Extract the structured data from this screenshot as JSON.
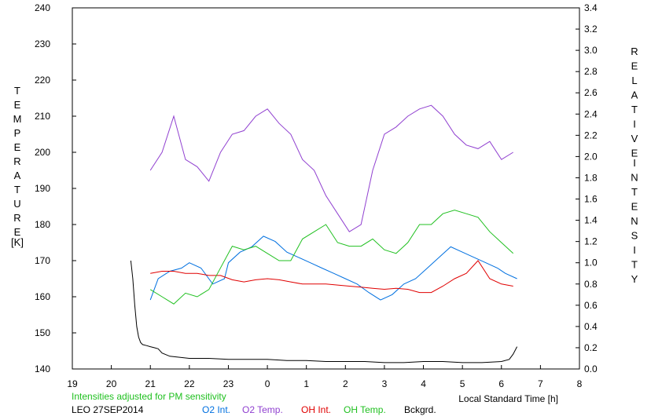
{
  "chart_data": {
    "type": "line",
    "xlabel": "Local Standard Time [h]",
    "ylabel_left": "TEMPERATURE",
    "ylabel_left_unit": "[K]",
    "ylabel_right": "RELATIVE INTENSITY",
    "x_ticks": [
      "19",
      "20",
      "21",
      "22",
      "23",
      "0",
      "1",
      "2",
      "3",
      "4",
      "5",
      "6",
      "7",
      "8"
    ],
    "x_range": [
      19,
      32
    ],
    "y_left_range": [
      140,
      240
    ],
    "y_left_ticks": [
      "140",
      "150",
      "160",
      "170",
      "180",
      "190",
      "200",
      "210",
      "220",
      "230",
      "240"
    ],
    "y_right_range": [
      0.0,
      3.4
    ],
    "y_right_ticks": [
      "0.0",
      "0.2",
      "0.4",
      "0.6",
      "0.8",
      "1.0",
      "1.2",
      "1.4",
      "1.6",
      "1.8",
      "2.0",
      "2.2",
      "2.4",
      "2.6",
      "2.8",
      "3.0",
      "3.2",
      "3.4"
    ],
    "note": "Intensities adjusted for PM sensitivity",
    "station": "LEO 27SEP2014",
    "grid": false,
    "legend_position": "bottom",
    "series": [
      {
        "name": "O2 Int.",
        "axis": "right",
        "color": "#0070e0",
        "x": [
          21.0,
          21.2,
          21.5,
          21.8,
          22.0,
          22.3,
          22.6,
          22.9,
          23.0,
          23.3,
          23.6,
          23.9,
          24.2,
          24.5,
          24.8,
          25.1,
          25.4,
          25.7,
          26.0,
          26.3,
          26.6,
          26.9,
          27.2,
          27.5,
          27.8,
          28.1,
          28.4,
          28.7,
          29.0,
          29.3,
          29.6,
          29.9,
          30.1,
          30.4
        ],
        "y": [
          0.65,
          0.85,
          0.92,
          0.95,
          1.0,
          0.95,
          0.8,
          0.85,
          1.0,
          1.1,
          1.15,
          1.25,
          1.2,
          1.1,
          1.05,
          1.0,
          0.95,
          0.9,
          0.85,
          0.8,
          0.72,
          0.65,
          0.7,
          0.8,
          0.85,
          0.95,
          1.05,
          1.15,
          1.1,
          1.05,
          1.0,
          0.95,
          0.9,
          0.85
        ]
      },
      {
        "name": "O2 Temp.",
        "axis": "left",
        "color": "#9040d0",
        "x": [
          21.0,
          21.3,
          21.6,
          21.9,
          22.2,
          22.5,
          22.8,
          23.1,
          23.4,
          23.7,
          24.0,
          24.3,
          24.6,
          24.9,
          25.2,
          25.5,
          25.8,
          26.1,
          26.4,
          26.7,
          27.0,
          27.3,
          27.6,
          27.9,
          28.2,
          28.5,
          28.8,
          29.1,
          29.4,
          29.7,
          30.0,
          30.3
        ],
        "y": [
          195,
          200,
          210,
          198,
          196,
          192,
          200,
          205,
          206,
          210,
          212,
          208,
          205,
          198,
          195,
          188,
          183,
          178,
          180,
          195,
          205,
          207,
          210,
          212,
          213,
          210,
          205,
          202,
          201,
          203,
          198,
          200
        ]
      },
      {
        "name": "OH Int.",
        "axis": "right",
        "color": "#e00000",
        "x": [
          21.0,
          21.3,
          21.6,
          21.9,
          22.2,
          22.5,
          22.8,
          23.1,
          23.4,
          23.7,
          24.0,
          24.3,
          24.6,
          24.9,
          25.2,
          25.5,
          25.8,
          26.1,
          26.4,
          26.7,
          27.0,
          27.3,
          27.6,
          27.9,
          28.2,
          28.5,
          28.8,
          29.1,
          29.4,
          29.7,
          30.0,
          30.3
        ],
        "y": [
          0.9,
          0.92,
          0.92,
          0.9,
          0.9,
          0.88,
          0.88,
          0.84,
          0.82,
          0.84,
          0.85,
          0.84,
          0.82,
          0.8,
          0.8,
          0.8,
          0.79,
          0.78,
          0.77,
          0.76,
          0.75,
          0.76,
          0.75,
          0.72,
          0.72,
          0.78,
          0.85,
          0.9,
          1.02,
          0.85,
          0.8,
          0.78
        ]
      },
      {
        "name": "OH Temp.",
        "axis": "left",
        "color": "#20c020",
        "x": [
          21.0,
          21.3,
          21.6,
          21.9,
          22.2,
          22.5,
          22.8,
          23.1,
          23.4,
          23.7,
          24.0,
          24.3,
          24.6,
          24.9,
          25.2,
          25.5,
          25.8,
          26.1,
          26.4,
          26.7,
          27.0,
          27.3,
          27.6,
          27.9,
          28.2,
          28.5,
          28.8,
          29.1,
          29.4,
          29.7,
          30.0,
          30.3
        ],
        "y": [
          162,
          160,
          158,
          161,
          160,
          162,
          168,
          174,
          173,
          174,
          172,
          170,
          170,
          176,
          178,
          180,
          175,
          174,
          174,
          176,
          173,
          172,
          175,
          180,
          180,
          183,
          184,
          183,
          182,
          178,
          175,
          172
        ]
      },
      {
        "name": "Bckgrd.",
        "axis": "right",
        "color": "#000000",
        "x": [
          20.5,
          20.55,
          20.6,
          20.65,
          20.7,
          20.75,
          20.8,
          20.9,
          21.0,
          21.1,
          21.2,
          21.3,
          21.5,
          22.0,
          22.5,
          23.0,
          23.5,
          24.0,
          24.5,
          25.0,
          25.5,
          26.0,
          26.5,
          27.0,
          27.5,
          28.0,
          28.5,
          29.0,
          29.5,
          30.0,
          30.2,
          30.3,
          30.4
        ],
        "y": [
          1.02,
          0.85,
          0.6,
          0.4,
          0.3,
          0.25,
          0.23,
          0.22,
          0.21,
          0.2,
          0.19,
          0.15,
          0.12,
          0.1,
          0.1,
          0.09,
          0.09,
          0.09,
          0.08,
          0.08,
          0.07,
          0.07,
          0.07,
          0.06,
          0.06,
          0.07,
          0.07,
          0.06,
          0.06,
          0.07,
          0.09,
          0.14,
          0.21
        ]
      }
    ]
  }
}
